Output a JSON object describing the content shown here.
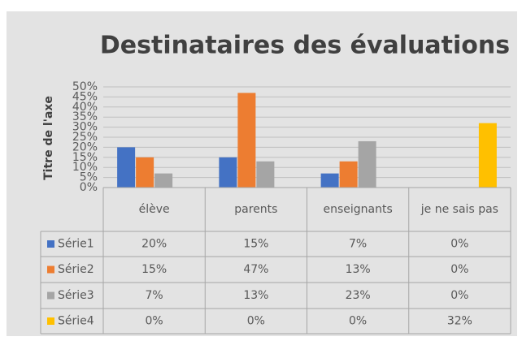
{
  "chart_data": {
    "type": "bar",
    "title": "Destinataires des évaluations",
    "y_label": "Titre de l'axe",
    "categories": [
      "élève",
      "parents",
      "enseignants",
      "je ne sais pas"
    ],
    "series": [
      {
        "name": "Série1",
        "color": "#4472c4",
        "values": [
          20,
          15,
          7,
          0
        ],
        "value_labels": [
          "20%",
          "15%",
          "7%",
          "0%"
        ]
      },
      {
        "name": "Série2",
        "color": "#ed7d31",
        "values": [
          15,
          47,
          13,
          0
        ],
        "value_labels": [
          "15%",
          "47%",
          "13%",
          "0%"
        ]
      },
      {
        "name": "Série3",
        "color": "#a5a5a5",
        "values": [
          7,
          13,
          23,
          0
        ],
        "value_labels": [
          "7%",
          "13%",
          "23%",
          "0%"
        ]
      },
      {
        "name": "Série4",
        "color": "#ffc000",
        "values": [
          0,
          0,
          0,
          32
        ],
        "value_labels": [
          "0%",
          "0%",
          "0%",
          "32%"
        ]
      }
    ],
    "ylim": [
      0,
      50
    ],
    "yticks": [
      {
        "value": 0,
        "label": "0%"
      },
      {
        "value": 5,
        "label": "5%"
      },
      {
        "value": 10,
        "label": "10%"
      },
      {
        "value": 15,
        "label": "15%"
      },
      {
        "value": 20,
        "label": "20%"
      },
      {
        "value": 25,
        "label": "25%"
      },
      {
        "value": 30,
        "label": "30%"
      },
      {
        "value": 35,
        "label": "35%"
      },
      {
        "value": 40,
        "label": "40%"
      },
      {
        "value": 45,
        "label": "45%"
      },
      {
        "value": 50,
        "label": "50%"
      }
    ],
    "grid": true
  }
}
